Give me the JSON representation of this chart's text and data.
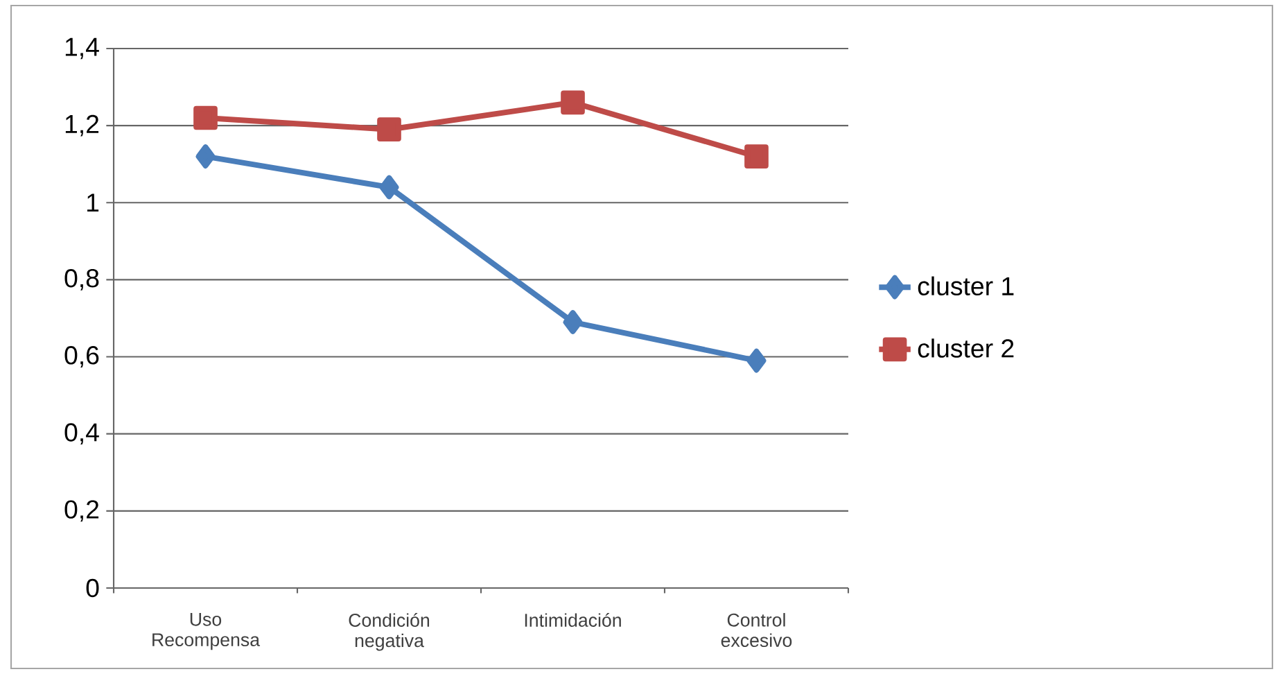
{
  "chart_data": {
    "type": "line",
    "categories": [
      "Uso Recompensa",
      "Condición negativa",
      "Intimidación",
      "Control excesivo"
    ],
    "series": [
      {
        "name": "cluster 1",
        "color": "#4a7ebb",
        "marker": "diamond",
        "values": [
          1.12,
          1.04,
          0.69,
          0.59
        ]
      },
      {
        "name": "cluster 2",
        "color": "#be4b48",
        "marker": "square",
        "values": [
          1.22,
          1.19,
          1.26,
          1.12
        ]
      }
    ],
    "ylim": [
      0,
      1.4
    ],
    "yticks": [
      0,
      {
        "value": 0.2,
        "label": "0,2"
      },
      {
        "value": 0.4,
        "label": "0,4"
      },
      {
        "value": 0.6,
        "label": "0,6"
      },
      {
        "value": 0.8,
        "label": "0,8"
      },
      1,
      {
        "value": 1.2,
        "label": "1,2"
      },
      {
        "value": 1.4,
        "label": "1,4"
      }
    ],
    "grid": "y",
    "legend": "right",
    "line_style": "solid"
  }
}
